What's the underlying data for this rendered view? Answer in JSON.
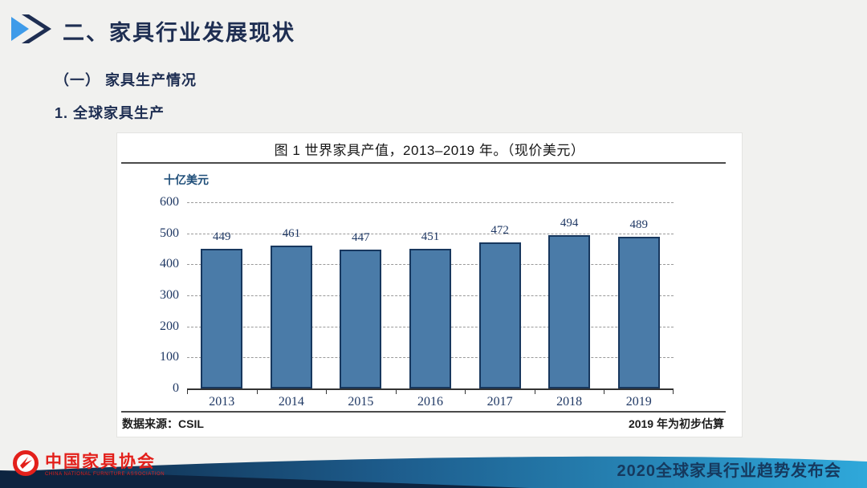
{
  "slide": {
    "title": "二、家具行业发展现状",
    "section": "（一） 家具生产情况",
    "subsection": "1. 全球家具生产"
  },
  "chart": {
    "title": "图 1 世界家具产值，2013–2019 年。（现价美元）",
    "unit_label": "十亿美元",
    "source": "数据来源：CSIL",
    "note": "2019 年为初步估算"
  },
  "chart_data": {
    "type": "bar",
    "title": "图 1 世界家具产值，2013–2019 年。（现价美元）",
    "categories": [
      "2013",
      "2014",
      "2015",
      "2016",
      "2017",
      "2018",
      "2019"
    ],
    "values": [
      449,
      461,
      447,
      451,
      472,
      494,
      489
    ],
    "xlabel": "",
    "ylabel": "十亿美元",
    "ylim": [
      0,
      600
    ],
    "yticks": [
      0,
      100,
      200,
      300,
      400,
      500,
      600
    ],
    "grid": true,
    "gridline_style": "dashed",
    "legend": "none",
    "data_labels": true,
    "bar_color": "#4A7BA8",
    "bar_border_color": "#17375E",
    "tick_label_color": "#1F3864"
  },
  "footer": {
    "logo_text": "中国家具协会",
    "logo_subtext": "CHINA NATIONAL FURNITURE ASSOCIATION",
    "event_title": "2020全球家具行业趋势发布会"
  },
  "colors": {
    "accent_light_blue": "#3E9BE9",
    "heading_navy": "#1E2E52",
    "bar_fill": "#4A7BA8",
    "bar_border": "#17375E",
    "axis_label_blue": "#1F3864",
    "unit_label_blue": "#1F4E79",
    "grid_gray": "#9A9A9A",
    "logo_red": "#E3201B",
    "wave_dark": "#0D2440",
    "wave_mid": "#1D5C8C",
    "wave_light": "#2FA8DA",
    "footer_text_navy": "#16395E"
  }
}
